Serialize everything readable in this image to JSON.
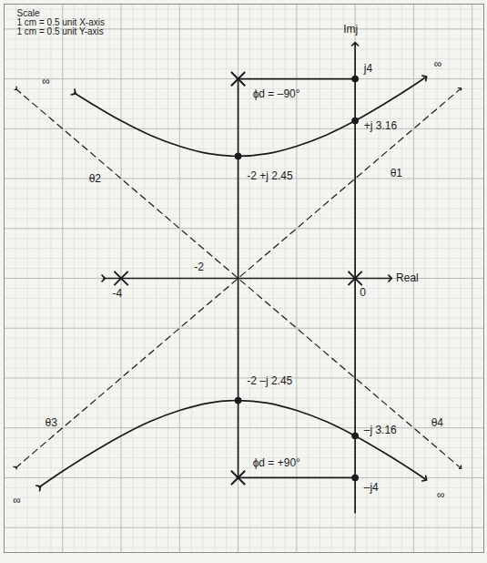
{
  "chart_data": {
    "type": "root_locus",
    "color": "#1a1a1a",
    "xlim": [
      -6,
      2.2
    ],
    "ylim": [
      -5.5,
      5.5
    ],
    "xticks": [
      -6,
      -5,
      -4,
      -3,
      -2,
      -1,
      0,
      1,
      2
    ],
    "yticks": [
      -5,
      -4,
      -3,
      -2,
      -1,
      0,
      1,
      2,
      3,
      4,
      5
    ],
    "grid": true,
    "tick_labels": false,
    "scale_note": [
      "Scale",
      "1 cm = 0.5 unit X-axis",
      "1 cm = 0.5 unit Y-axis"
    ],
    "series": [
      {
        "type": "line",
        "line_style": "solid",
        "marker": "arrow",
        "x": [
          -4.3,
          0.6
        ],
        "y": [
          0,
          0
        ]
      },
      {
        "type": "line",
        "line_style": "solid",
        "marker": "arrow_end",
        "x": [
          0,
          0
        ],
        "y": [
          -4.7,
          4.7
        ]
      },
      {
        "type": "line",
        "line_style": "solid",
        "marker": "none",
        "x": [
          -2,
          -2
        ],
        "y": [
          -4,
          4
        ]
      },
      {
        "type": "line",
        "line_style": "solid",
        "marker": "none",
        "x": [
          -2,
          0
        ],
        "y": [
          4,
          4
        ]
      },
      {
        "type": "line",
        "line_style": "solid",
        "marker": "none",
        "x": [
          -2,
          0
        ],
        "y": [
          -4,
          -4
        ]
      },
      {
        "type": "line",
        "line_style": "dashed",
        "marker": "arrow",
        "x": [
          -5.8,
          1.8
        ],
        "y": [
          -3.8,
          3.8
        ]
      },
      {
        "type": "line",
        "line_style": "dashed",
        "marker": "arrow",
        "x": [
          -5.8,
          1.8
        ],
        "y": [
          3.8,
          -3.8
        ]
      },
      {
        "type": "line",
        "line_style": "solid",
        "marker": "arrow",
        "x": [
          -4.8,
          -4.4,
          -4,
          -3.5,
          -3,
          -2.5,
          -2,
          -1.5,
          -1,
          -0.5,
          0,
          0.5,
          1,
          1.2
        ],
        "y": [
          3.72,
          3.43,
          3.16,
          2.87,
          2.65,
          2.5,
          2.45,
          2.5,
          2.65,
          2.87,
          3.16,
          3.5,
          3.87,
          4.03
        ]
      },
      {
        "type": "line",
        "line_style": "solid",
        "marker": "arrow",
        "x": [
          -5.4,
          -5,
          -4.5,
          -4,
          -3.5,
          -3,
          -2.5,
          -2,
          -1.5,
          -1,
          -0.5,
          0,
          0.5,
          1,
          1.2
        ],
        "y": [
          -4.19,
          -3.87,
          -3.5,
          -3.16,
          -2.87,
          -2.65,
          -2.5,
          -2.45,
          -2.5,
          -2.65,
          -2.87,
          -3.16,
          -3.5,
          -3.87,
          -4.03
        ]
      },
      {
        "type": "scatter",
        "marker": "cross",
        "x": [
          0,
          -4,
          -2,
          -2
        ],
        "y": [
          0,
          0,
          4,
          -4
        ]
      },
      {
        "type": "scatter",
        "marker": "dot",
        "x": [
          -2,
          -2,
          0,
          0,
          0,
          0
        ],
        "y": [
          2.45,
          -2.45,
          3.16,
          -3.16,
          4,
          -4
        ]
      }
    ],
    "annotations": [
      {
        "text": "Imj",
        "x": -0.2,
        "y": 5.0
      },
      {
        "text": "Real",
        "x": 0.7,
        "y": 0
      },
      {
        "text": "j4",
        "x": 0.15,
        "y": 4.2
      },
      {
        "text": "+j 3.16",
        "x": 0.15,
        "y": 3.05
      },
      {
        "text": "–j 3.16",
        "x": 0.15,
        "y": -3.05
      },
      {
        "text": "–j4",
        "x": 0.15,
        "y": -4.2
      },
      {
        "text": "-2 +j 2.45",
        "x": -1.85,
        "y": 2.05
      },
      {
        "text": "-2 –j 2.45",
        "x": -1.85,
        "y": -2.05
      },
      {
        "text": "-4",
        "x": -4.15,
        "y": -0.3
      },
      {
        "text": "-2",
        "x": -2.75,
        "y": 0.22
      },
      {
        "text": "0",
        "x": 0.08,
        "y": -0.28
      },
      {
        "text": "ϕd = –90°",
        "x": -1.75,
        "y": 3.7
      },
      {
        "text": "ϕd = +90°",
        "x": -1.75,
        "y": -3.7
      },
      {
        "text": "θ1",
        "x": 0.6,
        "y": 2.1
      },
      {
        "text": "θ2",
        "x": -4.55,
        "y": 2.0
      },
      {
        "text": "θ3",
        "x": -5.3,
        "y": -2.9
      },
      {
        "text": "θ4",
        "x": 1.3,
        "y": -2.9
      },
      {
        "text": "∞",
        "x": -5.35,
        "y": 3.95
      },
      {
        "text": "∞",
        "x": 1.35,
        "y": 4.3
      },
      {
        "text": "∞",
        "x": -5.85,
        "y": -4.45
      },
      {
        "text": "∞",
        "x": 1.4,
        "y": -4.35
      }
    ]
  }
}
